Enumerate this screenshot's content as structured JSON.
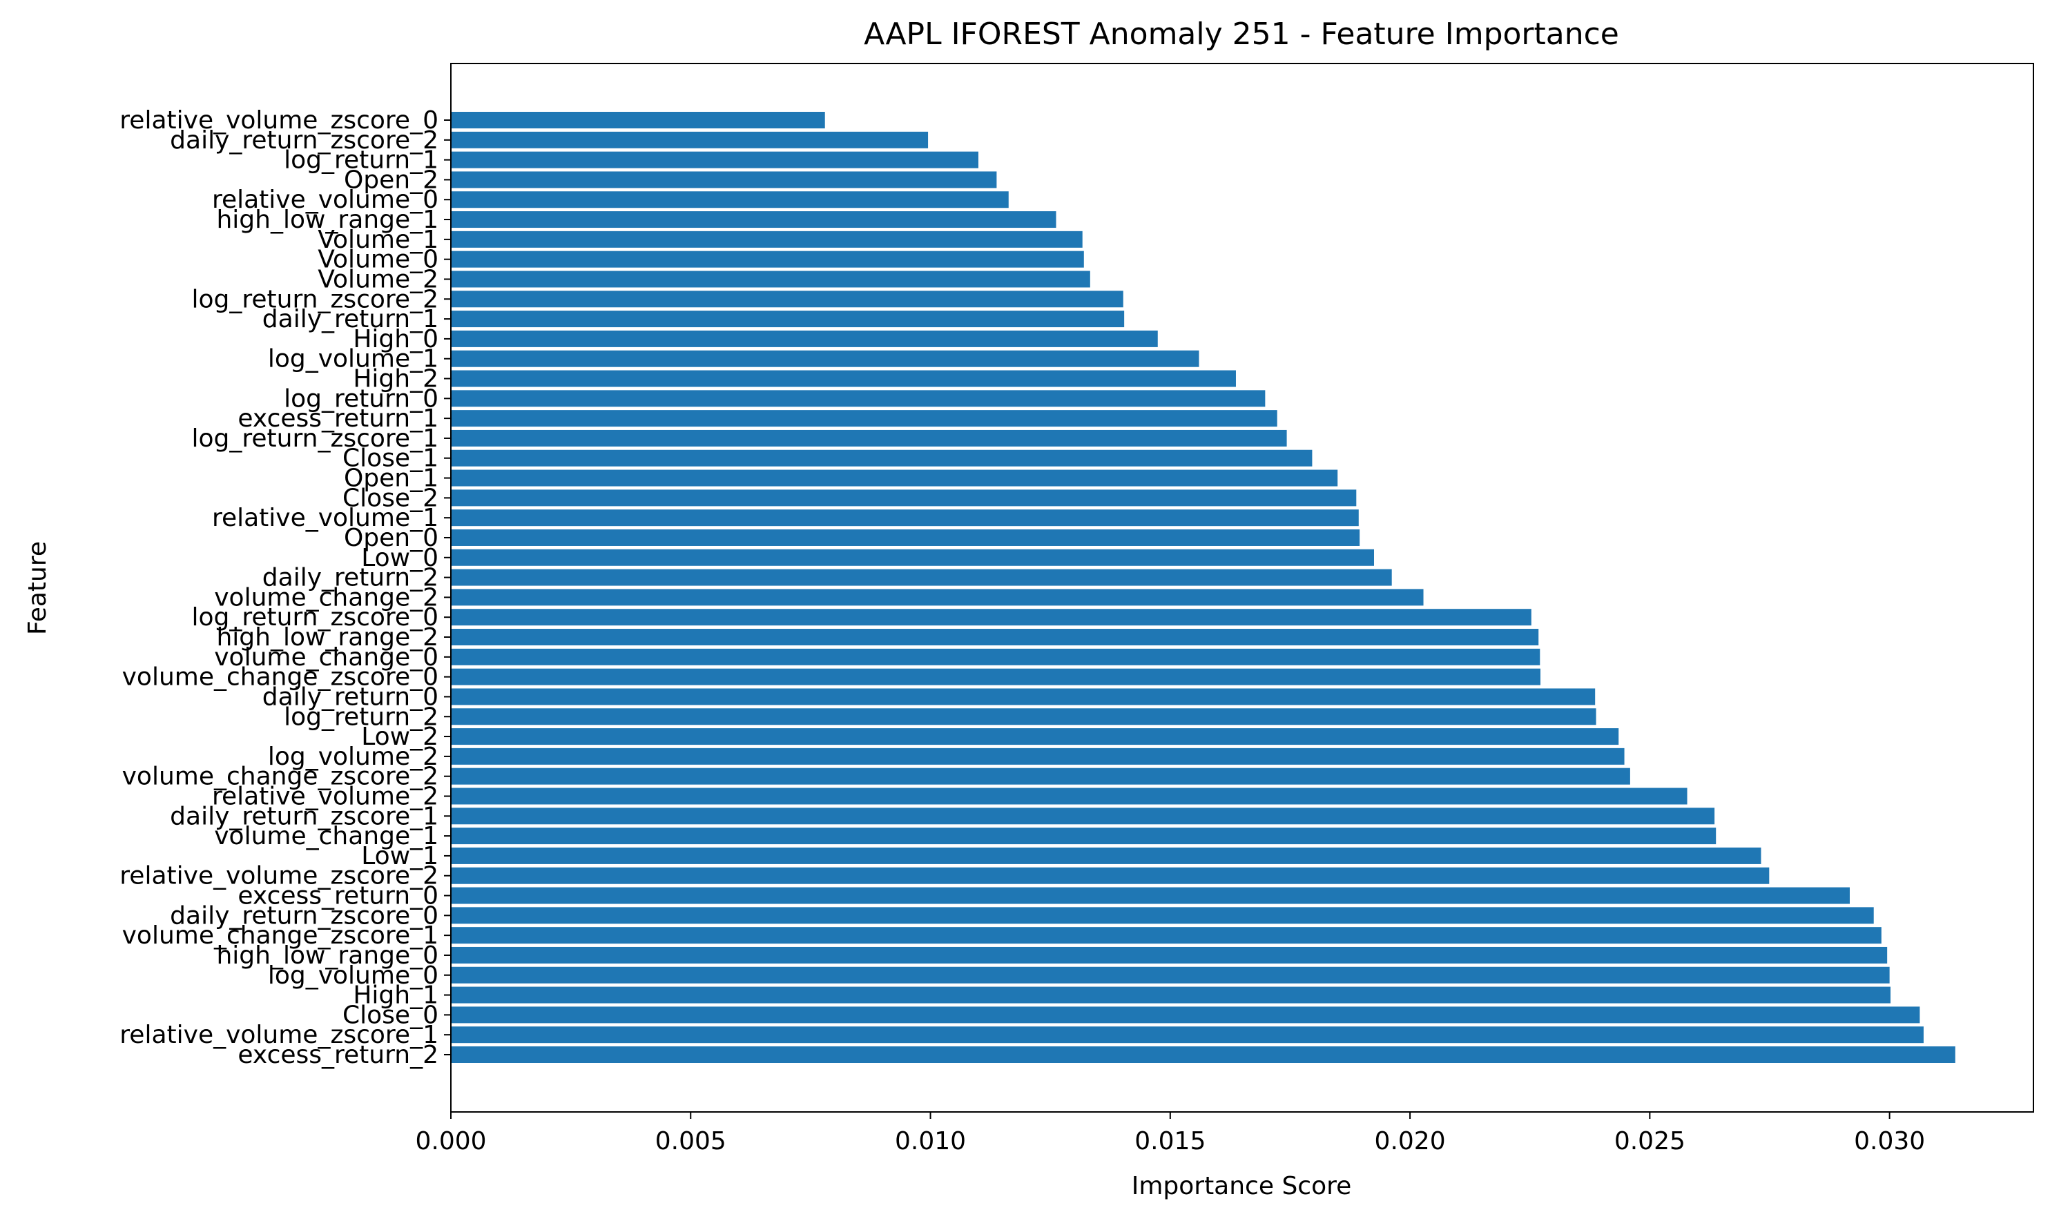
{
  "chart_data": {
    "type": "bar",
    "orientation": "horizontal",
    "title": "AAPL IFOREST Anomaly 251 - Feature Importance",
    "xlabel": "Importance Score",
    "ylabel": "Feature",
    "xlim": [
      0,
      0.033
    ],
    "xticks": [
      "0.000",
      "0.005",
      "0.010",
      "0.015",
      "0.020",
      "0.025",
      "0.030"
    ],
    "grid": false,
    "bar_color": "#1f77b4",
    "categories": [
      "relative_volume_zscore_0",
      "daily_return_zscore_2",
      "log_return_1",
      "Open_2",
      "relative_volume_0",
      "high_low_range_1",
      "Volume_1",
      "Volume_0",
      "Volume_2",
      "log_return_zscore_2",
      "daily_return_1",
      "High_0",
      "log_volume_1",
      "High_2",
      "log_return_0",
      "excess_return_1",
      "log_return_zscore_1",
      "Close_1",
      "Open_1",
      "Close_2",
      "relative_volume_1",
      "Open_0",
      "Low_0",
      "daily_return_2",
      "volume_change_2",
      "log_return_zscore_0",
      "high_low_range_2",
      "volume_change_0",
      "volume_change_zscore_0",
      "daily_return_0",
      "log_return_2",
      "Low_2",
      "log_volume_2",
      "volume_change_zscore_2",
      "relative_volume_2",
      "daily_return_zscore_1",
      "volume_change_1",
      "Low_1",
      "relative_volume_zscore_2",
      "excess_return_0",
      "daily_return_zscore_0",
      "volume_change_zscore_1",
      "high_low_range_0",
      "log_volume_0",
      "High_1",
      "Close_0",
      "relative_volume_zscore_1",
      "excess_return_2"
    ],
    "values": [
      0.0078,
      0.00995,
      0.011,
      0.01138,
      0.01163,
      0.01262,
      0.01317,
      0.0132,
      0.01333,
      0.01402,
      0.01404,
      0.01474,
      0.0156,
      0.01637,
      0.01698,
      0.01723,
      0.01743,
      0.01796,
      0.01849,
      0.01888,
      0.01893,
      0.01895,
      0.01925,
      0.01962,
      0.02028,
      0.02253,
      0.02268,
      0.02271,
      0.02272,
      0.02386,
      0.02388,
      0.02435,
      0.02447,
      0.02459,
      0.02578,
      0.02635,
      0.02638,
      0.02732,
      0.02749,
      0.02917,
      0.02967,
      0.02983,
      0.02995,
      0.03,
      0.03002,
      0.03063,
      0.03071,
      0.03137
    ]
  }
}
